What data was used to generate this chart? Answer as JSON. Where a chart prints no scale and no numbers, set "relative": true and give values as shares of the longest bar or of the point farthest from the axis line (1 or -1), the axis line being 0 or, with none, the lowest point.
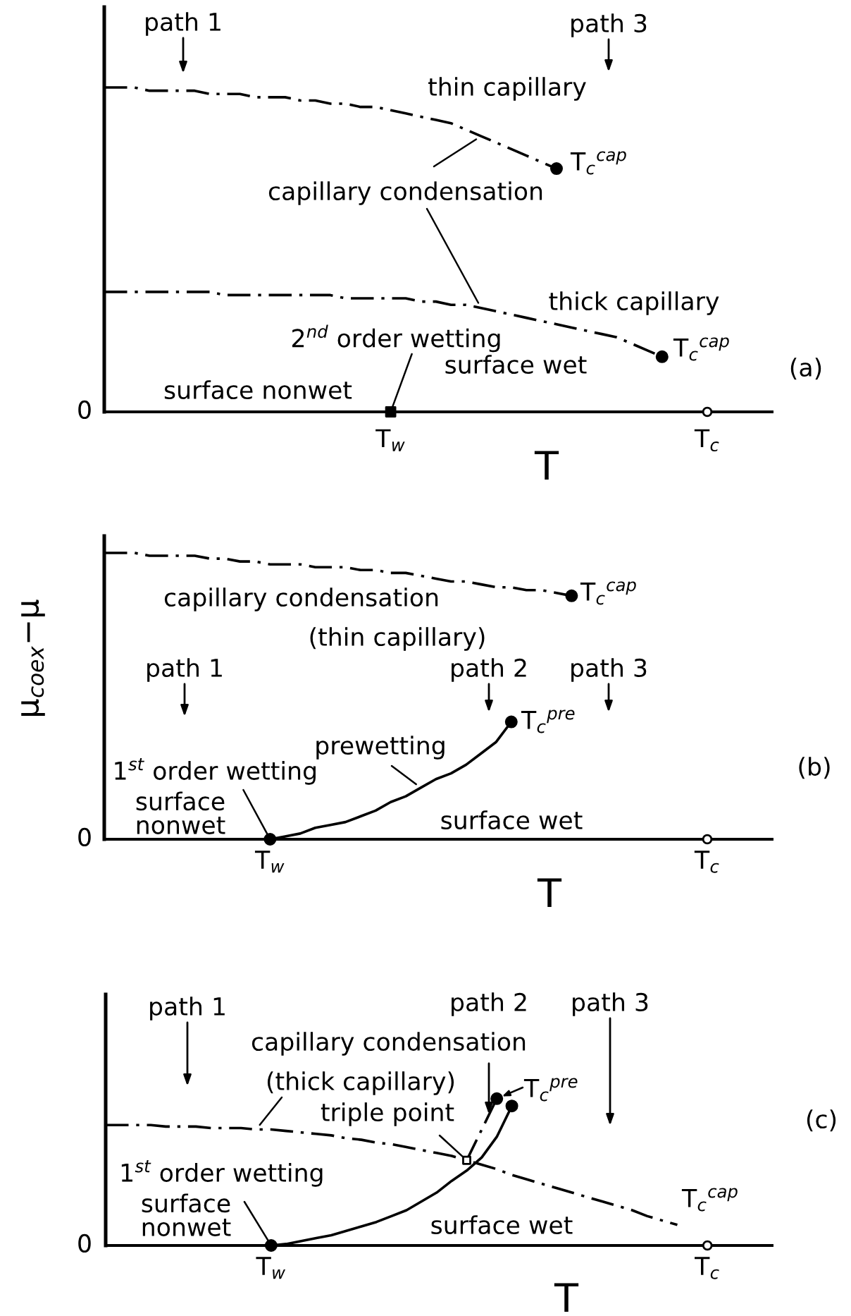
{
  "chart_data": [
    {
      "type": "line",
      "xlabel": "T",
      "relative": true,
      "categories": [
        null,
        null,
        null,
        null,
        null,
        null,
        null,
        null,
        null,
        null,
        null,
        null,
        null,
        null,
        null,
        null,
        null,
        null,
        null,
        "T$_{w}$",
        null,
        null,
        null,
        null,
        null,
        null,
        null,
        null,
        null,
        null,
        null,
        null,
        null,
        null,
        null,
        null,
        null,
        null,
        null,
        null,
        "T$_{c}$",
        null,
        null,
        null,
        null
      ],
      "series": [
        {
          "line_style": "dashdot",
          "color": "#000000",
          "values": [
            1,
            1,
            1,
            0.99,
            0.99,
            0.99,
            0.99,
            0.98,
            0.98,
            0.98,
            0.97,
            0.97,
            0.97,
            0.96,
            0.96,
            0.95,
            0.95,
            0.94,
            0.94,
            0.93,
            0.92,
            0.91,
            0.9,
            0.89,
            0.87,
            0.85,
            0.83,
            0.81,
            0.79,
            0.77,
            0.75,
            null,
            null,
            null,
            null,
            null,
            null,
            null,
            null,
            null,
            null,
            null,
            null,
            null,
            null
          ]
        },
        {
          "line_style": "dashdot",
          "color": "#000000",
          "values": [
            0.37,
            0.37,
            0.37,
            0.37,
            0.37,
            0.37,
            0.37,
            0.37,
            0.36,
            0.36,
            0.36,
            0.36,
            0.36,
            0.36,
            0.36,
            0.36,
            0.35,
            0.35,
            0.35,
            0.35,
            0.35,
            0.34,
            0.34,
            0.33,
            0.33,
            0.32,
            0.31,
            0.3,
            0.29,
            0.28,
            0.27,
            0.26,
            0.25,
            0.24,
            0.23,
            0.21,
            0.19,
            0.17,
            null,
            null,
            null,
            null,
            null,
            null,
            null
          ]
        },
        {
          "type": "scatter",
          "marker": "square",
          "color": "#000000",
          "values": [
            null,
            null,
            null,
            null,
            null,
            null,
            null,
            null,
            null,
            null,
            null,
            null,
            null,
            null,
            null,
            null,
            null,
            null,
            null,
            0,
            null,
            null,
            null,
            null,
            null,
            null,
            null,
            null,
            null,
            null,
            null,
            null,
            null,
            null,
            null,
            null,
            null,
            null,
            null,
            null,
            null,
            null,
            null,
            null,
            null
          ]
        },
        {
          "type": "scatter",
          "marker": "circle",
          "color": "#000000",
          "values": [
            null,
            null,
            null,
            null,
            null,
            null,
            null,
            null,
            null,
            null,
            null,
            null,
            null,
            null,
            null,
            null,
            null,
            null,
            null,
            null,
            null,
            null,
            null,
            null,
            null,
            null,
            null,
            null,
            null,
            null,
            0.75,
            null,
            null,
            null,
            null,
            null,
            null,
            0.17,
            null,
            null,
            null,
            null,
            null,
            null,
            null
          ]
        },
        {
          "type": "scatter",
          "marker": "circle",
          "color": "#ffffff",
          "values": [
            null,
            null,
            null,
            null,
            null,
            null,
            null,
            null,
            null,
            null,
            null,
            null,
            null,
            null,
            null,
            null,
            null,
            null,
            null,
            null,
            null,
            null,
            null,
            null,
            null,
            null,
            null,
            null,
            null,
            null,
            null,
            null,
            null,
            null,
            null,
            null,
            null,
            null,
            null,
            null,
            0,
            null,
            null,
            null,
            null
          ]
        }
      ],
      "annotations": [
        "path 1",
        "path 3",
        "thin capillary",
        "capillary condensation",
        "thick capillary",
        {
          "text": "2$^{nd}$ order wetting",
          "x": "T$_{w}$",
          "y": 0
        },
        "surface nonwet",
        "surface wet",
        "T$_{c}$$^{cap}$",
        "T$_{c}$$^{cap}$",
        "0",
        "(a)"
      ]
    },
    {
      "type": "line",
      "xlabel": "T",
      "ylabel": "μ$_{coex}$−μ",
      "relative": true,
      "categories": [
        null,
        null,
        null,
        null,
        null,
        null,
        null,
        null,
        null,
        null,
        null,
        "T$_{w}$",
        null,
        null,
        null,
        null,
        null,
        null,
        null,
        null,
        null,
        null,
        null,
        null,
        null,
        null,
        null,
        null,
        null,
        null,
        null,
        null,
        null,
        null,
        null,
        null,
        null,
        null,
        null,
        null,
        "T$_{c}$",
        null,
        null,
        null,
        null
      ],
      "series": [
        {
          "line_style": "dashdot",
          "color": "#000000",
          "values": [
            1,
            1,
            1,
            0.99,
            0.99,
            0.99,
            0.99,
            0.98,
            0.98,
            0.97,
            0.97,
            0.96,
            0.96,
            0.96,
            0.95,
            0.95,
            0.95,
            0.94,
            0.94,
            0.93,
            0.93,
            0.92,
            0.91,
            0.9,
            0.9,
            0.89,
            0.88,
            0.88,
            0.87,
            0.87,
            0.86,
            0.85,
            null,
            null,
            null,
            null,
            null,
            null,
            null,
            null,
            null,
            null,
            null,
            null,
            null
          ]
        },
        {
          "line_style": "solid",
          "color": "#000000",
          "values": [
            null,
            null,
            null,
            null,
            null,
            null,
            null,
            null,
            null,
            null,
            null,
            0,
            0.01,
            0.02,
            0.04,
            0.05,
            0.06,
            0.08,
            0.1,
            0.13,
            0.15,
            0.18,
            0.21,
            0.23,
            0.26,
            0.3,
            0.34,
            0.41,
            null,
            null,
            null,
            null,
            null,
            null,
            null,
            null,
            null,
            null,
            null,
            null,
            null,
            null,
            null,
            null,
            null
          ]
        },
        {
          "type": "scatter",
          "marker": "circle",
          "color": "#000000",
          "values": [
            null,
            null,
            null,
            null,
            null,
            null,
            null,
            null,
            null,
            null,
            null,
            0,
            null,
            null,
            null,
            null,
            null,
            null,
            null,
            null,
            null,
            null,
            null,
            null,
            null,
            null,
            null,
            null,
            null,
            null,
            null,
            null,
            null,
            null,
            null,
            null,
            null,
            null,
            null,
            null,
            null,
            null,
            null,
            null,
            null
          ]
        },
        {
          "type": "scatter",
          "marker": "circle",
          "color": "#000000",
          "values": [
            null,
            null,
            null,
            null,
            null,
            null,
            null,
            null,
            null,
            null,
            null,
            null,
            null,
            null,
            null,
            null,
            null,
            null,
            null,
            null,
            null,
            null,
            null,
            null,
            null,
            null,
            null,
            0.41,
            null,
            null,
            null,
            0.85,
            null,
            null,
            null,
            null,
            null,
            null,
            null,
            null,
            null,
            null,
            null,
            null,
            null
          ]
        },
        {
          "type": "scatter",
          "marker": "circle",
          "color": "#ffffff",
          "values": [
            null,
            null,
            null,
            null,
            null,
            null,
            null,
            null,
            null,
            null,
            null,
            null,
            null,
            null,
            null,
            null,
            null,
            null,
            null,
            null,
            null,
            null,
            null,
            null,
            null,
            null,
            null,
            null,
            null,
            null,
            null,
            null,
            null,
            null,
            null,
            null,
            null,
            null,
            null,
            null,
            0,
            null,
            null,
            null,
            null
          ]
        }
      ],
      "annotations": [
        "capillary condensation",
        "(thin capillary)",
        "path 1",
        "path 2",
        "path 3",
        "T$_{c}$$^{cap}$",
        "T$_{c}$$^{pre}$",
        "prewetting",
        {
          "text": "1$^{st}$ order wetting",
          "x": "T$_{w}$",
          "y": 0
        },
        "surface\nnonwet",
        "surface wet",
        "0",
        "(b)"
      ]
    },
    {
      "type": "line",
      "xlabel": "T",
      "relative": true,
      "categories": [
        null,
        null,
        null,
        null,
        null,
        null,
        null,
        null,
        null,
        null,
        null,
        "T$_{w}$",
        null,
        null,
        null,
        null,
        null,
        null,
        null,
        null,
        null,
        null,
        null,
        null,
        null,
        null,
        null,
        null,
        null,
        null,
        null,
        null,
        null,
        null,
        null,
        null,
        null,
        null,
        null,
        null,
        "T$_{c}$",
        null,
        null,
        null,
        null
      ],
      "series": [
        {
          "line_style": "dashdot",
          "color": "#000000",
          "values": [
            0.82,
            0.82,
            0.82,
            0.82,
            0.81,
            0.81,
            0.81,
            0.8,
            0.8,
            0.8,
            0.79,
            0.79,
            0.78,
            0.77,
            0.76,
            0.75,
            0.73,
            0.72,
            0.7,
            0.69,
            0.67,
            0.65,
            0.63,
            0.61,
            0.58,
            0.55,
            0.52,
            0.48,
            0.45,
            0.42,
            0.39,
            0.36,
            0.33,
            0.3,
            0.27,
            0.24,
            0.2,
            0.17,
            0.14,
            null,
            null,
            null,
            null,
            null,
            null
          ]
        },
        {
          "line_style": "solid",
          "color": "#000000",
          "values": [
            null,
            null,
            null,
            null,
            null,
            null,
            null,
            null,
            null,
            null,
            null,
            0,
            0.01,
            0.03,
            0.05,
            0.07,
            0.1,
            0.13,
            0.16,
            0.2,
            0.24,
            0.3,
            0.36,
            0.44,
            0.51,
            0.6,
            0.74,
            0.95,
            null,
            null,
            null,
            null,
            null,
            null,
            null,
            null,
            null,
            null,
            null,
            null,
            null,
            null,
            null,
            null,
            null
          ]
        },
        {
          "line_style": "dashdot",
          "color": "#000000",
          "values": [
            null,
            null,
            null,
            null,
            null,
            null,
            null,
            null,
            null,
            null,
            null,
            null,
            null,
            null,
            null,
            null,
            null,
            null,
            null,
            null,
            null,
            null,
            null,
            null,
            0.58,
            0.79,
            1,
            null,
            null,
            null,
            null,
            null,
            null,
            null,
            null,
            null,
            null,
            null,
            null,
            null,
            null,
            null,
            null,
            null,
            null
          ]
        },
        {
          "type": "scatter",
          "marker": "circle",
          "color": "#000000",
          "values": [
            null,
            null,
            null,
            null,
            null,
            null,
            null,
            null,
            null,
            null,
            null,
            0,
            null,
            null,
            null,
            null,
            null,
            null,
            null,
            null,
            null,
            null,
            null,
            null,
            null,
            null,
            1,
            0.95,
            null,
            null,
            null,
            null,
            null,
            null,
            null,
            null,
            null,
            null,
            null,
            null,
            null,
            null,
            null,
            null,
            null
          ]
        },
        {
          "type": "scatter",
          "marker": "square",
          "color": "#ffffff",
          "values": [
            null,
            null,
            null,
            null,
            null,
            null,
            null,
            null,
            null,
            null,
            null,
            null,
            null,
            null,
            null,
            null,
            null,
            null,
            null,
            null,
            null,
            null,
            null,
            null,
            0.58,
            null,
            null,
            null,
            null,
            null,
            null,
            null,
            null,
            null,
            null,
            null,
            null,
            null,
            null,
            null,
            null,
            null,
            null,
            null,
            null
          ]
        },
        {
          "type": "scatter",
          "marker": "circle",
          "color": "#ffffff",
          "values": [
            null,
            null,
            null,
            null,
            null,
            null,
            null,
            null,
            null,
            null,
            null,
            null,
            null,
            null,
            null,
            null,
            null,
            null,
            null,
            null,
            null,
            null,
            null,
            null,
            null,
            null,
            null,
            null,
            null,
            null,
            null,
            null,
            null,
            null,
            null,
            null,
            null,
            null,
            null,
            null,
            0,
            null,
            null,
            null,
            null
          ]
        }
      ],
      "annotations": [
        "path 1",
        "capillary condensation",
        "path 2",
        "path 3",
        "(thick capillary)",
        "triple point",
        "T$_{c}$$^{pre}$",
        "T$_{c}$$^{cap}$",
        {
          "text": "1$^{st}$ order wetting",
          "x": "T$_{w}$",
          "y": 0
        },
        "surface\nnonwet",
        "surface wet",
        "0",
        "(c)"
      ]
    }
  ]
}
